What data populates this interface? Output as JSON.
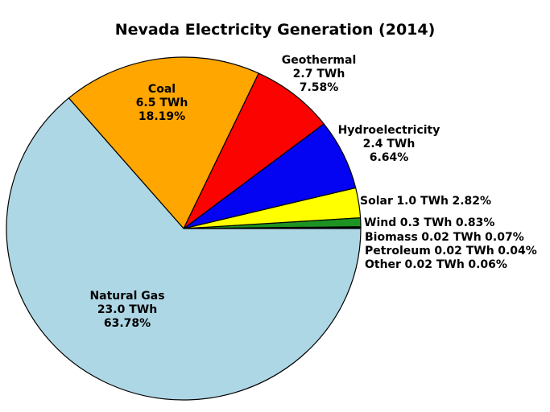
{
  "title": "Nevada Electricity Generation (2014)",
  "chart_data": {
    "type": "pie",
    "title": "Nevada Electricity Generation (2014)",
    "units": "TWh",
    "start_angle_deg": 0,
    "direction": "counterclockwise",
    "background": "#ffffff",
    "stroke_color": "#000000",
    "slices": [
      {
        "name": "Other",
        "value_twh": 0.02,
        "twh_label": "0.02 TWh",
        "percent": 0.06,
        "pct_label": "0.06%",
        "color": "#707070"
      },
      {
        "name": "Petroleum",
        "value_twh": 0.02,
        "twh_label": "0.02 TWh",
        "percent": 0.04,
        "pct_label": "0.04%",
        "color": "#5a3a22"
      },
      {
        "name": "Biomass",
        "value_twh": 0.02,
        "twh_label": "0.02 TWh",
        "percent": 0.07,
        "pct_label": "0.07%",
        "color": "#006400"
      },
      {
        "name": "Wind",
        "value_twh": 0.3,
        "twh_label": "0.3 TWh",
        "percent": 0.83,
        "pct_label": "0.83%",
        "color": "#1d9322"
      },
      {
        "name": "Solar",
        "value_twh": 1.0,
        "twh_label": "1.0 TWh",
        "percent": 2.82,
        "pct_label": "2.82%",
        "color": "#ffff00"
      },
      {
        "name": "Hydroelectricity",
        "value_twh": 2.4,
        "twh_label": "2.4 TWh",
        "percent": 6.64,
        "pct_label": "6.64%",
        "color": "#0404f2"
      },
      {
        "name": "Geothermal",
        "value_twh": 2.7,
        "twh_label": "2.7 TWh",
        "percent": 7.58,
        "pct_label": "7.58%",
        "color": "#fb0300"
      },
      {
        "name": "Coal",
        "value_twh": 6.5,
        "twh_label": "6.5 TWh",
        "percent": 18.19,
        "pct_label": "18.19%",
        "color": "#ffa600"
      },
      {
        "name": "Natural Gas",
        "value_twh": 23.0,
        "twh_label": "23.0 TWh",
        "percent": 63.78,
        "pct_label": "63.78%",
        "color": "#aed7e5"
      }
    ]
  }
}
